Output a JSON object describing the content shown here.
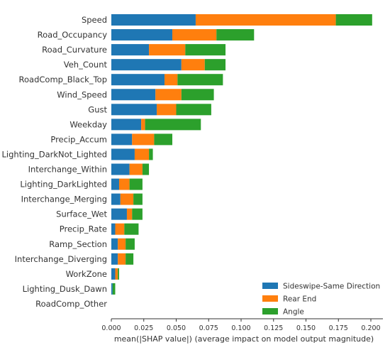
{
  "chart_data": {
    "type": "bar",
    "stacked": true,
    "orientation": "horizontal",
    "xlabel": "mean(|SHAP value|) (average impact on model output magnitude)",
    "ylabel": "",
    "xlim": [
      0,
      0.205
    ],
    "xticks": [
      "0.000",
      "0.025",
      "0.050",
      "0.075",
      "0.100",
      "0.125",
      "0.150",
      "0.175",
      "0.200"
    ],
    "grid": false,
    "legend_position": "bottom-right",
    "categories": [
      "Speed",
      "Road_Occupancy",
      "Road_Curvature",
      "Veh_Count",
      "RoadComp_Black_Top",
      "Wind_Speed",
      "Gust",
      "Weekday",
      "Precip_Accum",
      "Lighting_DarkNot_Lighted",
      "Interchange_Within",
      "Lighting_DarkLighted",
      "Interchange_Merging",
      "Surface_Wet",
      "Precip_Rate",
      "Ramp_Section",
      "Interchange_Diverging",
      "WorkZone",
      "Lighting_Dusk_Dawn",
      "RoadComp_Other"
    ],
    "series": [
      {
        "name": "Sideswipe-Same Direction",
        "color": "#1f77b4",
        "values": [
          0.065,
          0.047,
          0.029,
          0.054,
          0.041,
          0.034,
          0.035,
          0.023,
          0.016,
          0.018,
          0.014,
          0.006,
          0.007,
          0.012,
          0.003,
          0.005,
          0.005,
          0.003,
          0.001,
          0.0
        ]
      },
      {
        "name": "Rear End",
        "color": "#ff7f0e",
        "values": [
          0.108,
          0.034,
          0.028,
          0.018,
          0.01,
          0.02,
          0.015,
          0.003,
          0.017,
          0.011,
          0.01,
          0.008,
          0.01,
          0.004,
          0.007,
          0.006,
          0.006,
          0.002,
          0.0,
          0.0
        ]
      },
      {
        "name": "Angle",
        "color": "#2ca02c",
        "values": [
          0.028,
          0.029,
          0.031,
          0.016,
          0.035,
          0.025,
          0.027,
          0.043,
          0.014,
          0.003,
          0.005,
          0.01,
          0.007,
          0.008,
          0.011,
          0.007,
          0.006,
          0.001,
          0.002,
          0.0
        ]
      }
    ]
  }
}
